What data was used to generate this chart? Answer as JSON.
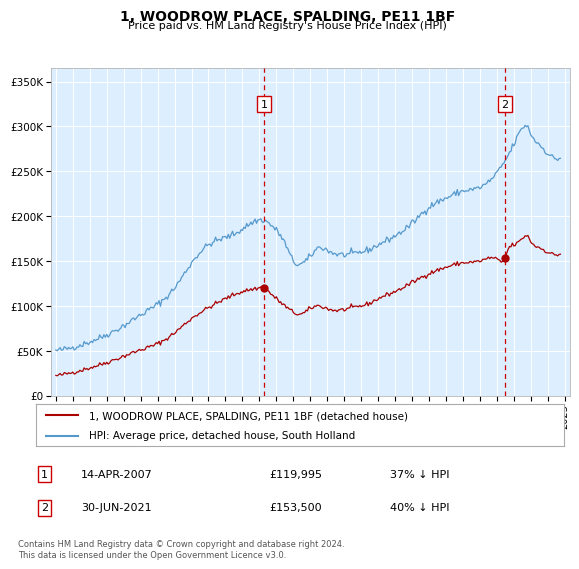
{
  "title": "1, WOODROW PLACE, SPALDING, PE11 1BF",
  "subtitle": "Price paid vs. HM Land Registry's House Price Index (HPI)",
  "ylabel_ticks": [
    "£0",
    "£50K",
    "£100K",
    "£150K",
    "£200K",
    "£250K",
    "£300K",
    "£350K"
  ],
  "ytick_values": [
    0,
    50000,
    100000,
    150000,
    200000,
    250000,
    300000,
    350000
  ],
  "ylim": [
    0,
    365000
  ],
  "xlim_start": 1994.7,
  "xlim_end": 2025.3,
  "background_color": "#ddeeff",
  "hpi_color": "#5599cc",
  "price_color": "#aa0000",
  "sale1_x": 2007.28,
  "sale1_y": 119995,
  "sale2_x": 2021.49,
  "sale2_y": 153500,
  "sale1_label": "1",
  "sale2_label": "2",
  "legend_line1": "1, WOODROW PLACE, SPALDING, PE11 1BF (detached house)",
  "legend_line2": "HPI: Average price, detached house, South Holland",
  "annotation1_date": "14-APR-2007",
  "annotation1_price": "£119,995",
  "annotation1_pct": "37% ↓ HPI",
  "annotation2_date": "30-JUN-2021",
  "annotation2_price": "£153,500",
  "annotation2_pct": "40% ↓ HPI",
  "footnote": "Contains HM Land Registry data © Crown copyright and database right 2024.\nThis data is licensed under the Open Government Licence v3.0."
}
